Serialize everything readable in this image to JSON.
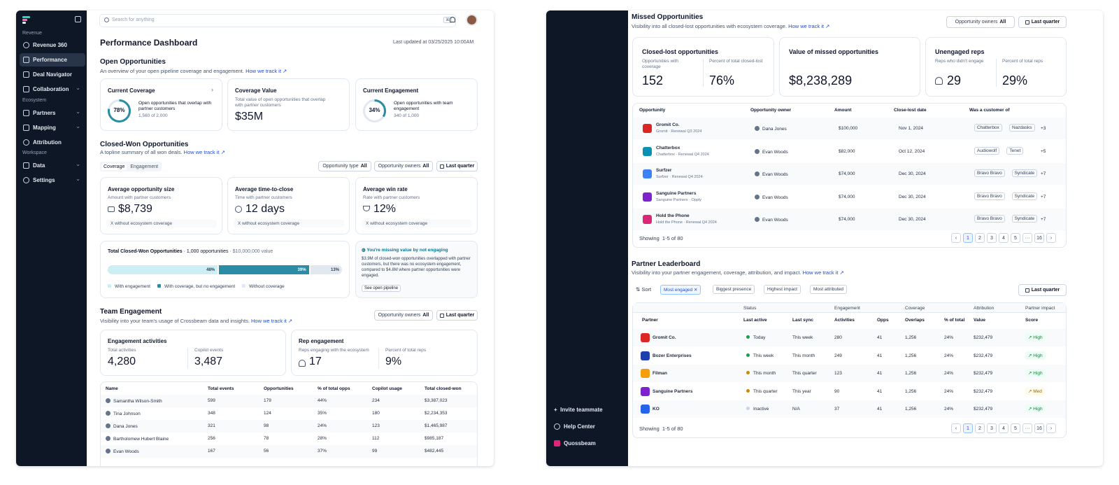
{
  "sidebar": {
    "sections": {
      "revenue": "Revenue",
      "ecosystem": "Ecosystem",
      "workspace": "Workspace"
    },
    "items": [
      {
        "label": "Revenue 360",
        "icon": "globe-icon"
      },
      {
        "label": "Performance",
        "icon": "chart-line-icon",
        "active": true
      },
      {
        "label": "Deal Navigator",
        "icon": "compass-icon"
      },
      {
        "label": "Collaboration",
        "icon": "chat-icon"
      },
      {
        "label": "Partners",
        "icon": "network-icon"
      },
      {
        "label": "Mapping",
        "icon": "arrows-icon"
      },
      {
        "label": "Attribution",
        "icon": "target-icon"
      },
      {
        "label": "Data",
        "icon": "database-icon"
      },
      {
        "label": "Settings",
        "icon": "gear-icon"
      }
    ],
    "bottom": [
      {
        "label": "Invite teammate"
      },
      {
        "label": "Help Center"
      },
      {
        "label": "Quossbeam"
      }
    ]
  },
  "search": {
    "placeholder": "Search for anything",
    "shortcut": "⌘"
  },
  "page": {
    "title": "Performance Dashboard",
    "updated": "Last updated at 03/25/2025 10:00AM"
  },
  "open_opps": {
    "title": "Open Opportunities",
    "subtitle": "An overview of your open pipeline coverage and engagement.",
    "link": "How we track it ↗",
    "coverage": {
      "title": "Current Coverage",
      "pct": "78%",
      "pct_value": 0.78,
      "desc": "Open opportunities that overlap with partner customers",
      "count": "1,560 of 2,000"
    },
    "value": {
      "title": "Coverage Value",
      "desc": "Total value of open opportunities that overlap with partner customers",
      "value": "$35M"
    },
    "engagement": {
      "title": "Current Engagement",
      "pct": "34%",
      "pct_value": 0.34,
      "desc": "Open opportunities with team engagement",
      "count": "340 of 1,000"
    }
  },
  "closed_won": {
    "title": "Closed-Won Opportunities",
    "subtitle": "A topline summary of all won deals.",
    "link": "How we track it ↗",
    "tabs": [
      "Coverage",
      "Engagement"
    ],
    "filters": {
      "type_label": "Opportunity type",
      "type_value": "All",
      "owners_label": "Opportunity owners",
      "owners_value": "All",
      "period": "Last quarter"
    },
    "metrics": [
      {
        "title": "Average opportunity size",
        "sub": "Amount with partner customers",
        "value": "$8,739",
        "foot": "X without ecosystem coverage",
        "icon": "briefcase-icon"
      },
      {
        "title": "Average time-to-close",
        "sub": "Time with partner customers",
        "value": "12 days",
        "foot": "X without ecosystem coverage",
        "icon": "clock-icon"
      },
      {
        "title": "Average win rate",
        "sub": "Rate with partner customers",
        "value": "12%",
        "foot": "X without ecosystem coverage",
        "icon": "trophy-icon"
      }
    ],
    "total": {
      "title": "Total Closed-Won Opportunities",
      "count": "1,000 opportunities",
      "value": "$10,000,000 value",
      "segments": [
        {
          "label": "48%",
          "value": 48,
          "color": "#cdeef3"
        },
        {
          "label": "39%",
          "value": 39,
          "color": "#2b8ca6"
        },
        {
          "label": "13%",
          "value": 13,
          "color": "#e2e8f0"
        }
      ],
      "legend": [
        "With engagement",
        "With coverage, but no engagement",
        "Without coverage"
      ]
    },
    "insight": {
      "title": "You're missing value by not engaging",
      "text": "$3.9M of closed-won opportunities overlapped with partner customers, but there was no ecosystem engagement, compared to $4.8M where partner opportunities were engaged.",
      "button": "See open pipeline"
    }
  },
  "team": {
    "title": "Team Engagement",
    "subtitle": "Visibility into your team's usage of Crossbeam data and insights.",
    "link": "How we track it ↗",
    "filters": {
      "owners_label": "Opportunity owners",
      "owners_value": "All",
      "period": "Last quarter"
    },
    "activities": {
      "title": "Engagement activities",
      "a_label": "Total activities",
      "a_value": "4,280",
      "b_label": "Copilot events",
      "b_value": "3,487"
    },
    "reps": {
      "title": "Rep engagement",
      "a_label": "Reps engaging with the ecosystem",
      "a_value": "17",
      "b_label": "Percent of total reps",
      "b_value": "9%"
    },
    "columns": [
      "Name",
      "Total events",
      "Opportunities",
      "% of total opps",
      "Copilot usage",
      "Total closed-won"
    ],
    "rows": [
      [
        "Samantha Wilson-Smith",
        "599",
        "179",
        "44%",
        "234",
        "$3,387,023"
      ],
      [
        "Tina Johnson",
        "348",
        "124",
        "35%",
        "180",
        "$2,234,353"
      ],
      [
        "Dana Jones",
        "321",
        "98",
        "24%",
        "123",
        "$1,465,987"
      ],
      [
        "Bartholomew Hubert Blaine",
        "256",
        "78",
        "28%",
        "112",
        "$985,187"
      ],
      [
        "Evan Woods",
        "167",
        "56",
        "37%",
        "99",
        "$482,445"
      ]
    ]
  },
  "missed": {
    "title": "Missed Opportunities",
    "subtitle": "Visibility into all closed-lost opportunities with ecosystem coverage.",
    "link": "How we track it ↗",
    "filters": {
      "owners_label": "Opportunity owners",
      "owners_value": "All",
      "period": "Last quarter"
    },
    "cards": [
      {
        "title": "Closed-lost opportunities",
        "a_label": "Opportunities with coverage",
        "a_value": "152",
        "b_label": "Percent of total closed-lost",
        "b_value": "76%"
      },
      {
        "title": "Value of missed opportunities",
        "a_value": "$8,238,289"
      },
      {
        "title": "Unengaged reps",
        "a_label": "Reps who didn't engage",
        "a_value": "29",
        "b_label": "Percent of total reps",
        "b_value": "29%"
      }
    ],
    "columns": [
      "Opportunity",
      "Opportunity owner",
      "Amount",
      "Close-lost date",
      "Was a customer of"
    ],
    "rows": [
      {
        "name": "Gromit Co.",
        "sub": "Gromit · Renewal Q3 2024",
        "owner": "Dana Jones",
        "amount": "$100,000",
        "date": "Nov 1, 2024",
        "tags": [
          "Chatterbox",
          "Nazdasks"
        ],
        "more": "+3",
        "color": "#dc2626"
      },
      {
        "name": "Chatterbox",
        "sub": "Chatterbox · Renewal Q4 2024",
        "owner": "Evan Woods",
        "amount": "$82,000",
        "date": "Oct 12, 2024",
        "tags": [
          "Audiowolf",
          "Tenet"
        ],
        "more": "+5",
        "color": "#0891b2"
      },
      {
        "name": "Surfzer",
        "sub": "Surfzer · Renewal Q4 2024",
        "owner": "Evan Woods",
        "amount": "$74,000",
        "date": "Dec 30, 2024",
        "tags": [
          "Bravo Bravo",
          "Syndicate"
        ],
        "more": "+7",
        "color": "#3b82f6"
      },
      {
        "name": "Sanguine Partners",
        "sub": "Sanguine Partners · Opply",
        "owner": "Evan Woods",
        "amount": "$74,000",
        "date": "Dec 30, 2024",
        "tags": [
          "Bravo Bravo",
          "Syndicate"
        ],
        "more": "+7",
        "color": "#7e22ce"
      },
      {
        "name": "Hold the Phone",
        "sub": "Hold the Phone · Renewal Q4 2024",
        "owner": "Evan Woods",
        "amount": "$74,000",
        "date": "Dec 30, 2024",
        "tags": [
          "Bravo Bravo",
          "Syndicate"
        ],
        "more": "+7",
        "color": "#db2777"
      }
    ],
    "showing": "Showing  1-5 of 80",
    "pages": [
      "1",
      "2",
      "3",
      "4",
      "5",
      "···",
      "16"
    ]
  },
  "leaderboard": {
    "title": "Partner Leaderboard",
    "subtitle": "Visibility into your partner engagement, coverage, attribution, and impact.",
    "link": "How we track it ↗",
    "sort": "Sort",
    "chips": [
      "Most engaged",
      "Biggest presence",
      "Highest impact",
      "Most attributed"
    ],
    "period": "Last quarter",
    "groups": [
      "Status",
      "Engagement",
      "Coverage",
      "Attribution",
      "Partner impact"
    ],
    "columns": [
      "Partner",
      "Last active",
      "Last sync",
      "Activities",
      "Opps",
      "Overlaps",
      "% of total",
      "Value",
      "Score"
    ],
    "rows": [
      {
        "name": "Gromit Co.",
        "active": "Today",
        "sync": "This week",
        "act": "280",
        "opps": "41",
        "ov": "1,256",
        "pct": "24%",
        "val": "$232,479",
        "score": "High",
        "dot": "#16a34a",
        "color": "#dc2626"
      },
      {
        "name": "Bozer Enterprises",
        "active": "This week",
        "sync": "This month",
        "act": "249",
        "opps": "41",
        "ov": "1,256",
        "pct": "24%",
        "val": "$232,479",
        "score": "High",
        "dot": "#16a34a",
        "color": "#1e40af"
      },
      {
        "name": "Filman",
        "active": "This month",
        "sync": "This quarter",
        "act": "123",
        "opps": "41",
        "ov": "1,256",
        "pct": "24%",
        "val": "$232,479",
        "score": "High",
        "dot": "#ca8a04",
        "color": "#f59e0b"
      },
      {
        "name": "Sanguine Partners",
        "active": "This quarter",
        "sync": "This year",
        "act": "90",
        "opps": "41",
        "ov": "1,256",
        "pct": "24%",
        "val": "$232,479",
        "score": "Med",
        "dot": "#ca8a04",
        "color": "#7e22ce"
      },
      {
        "name": "KO",
        "active": "Inactive",
        "sync": "N/A",
        "act": "37",
        "opps": "41",
        "ov": "1,256",
        "pct": "24%",
        "val": "$232,479",
        "score": "High",
        "dot": "#cbd5e1",
        "color": "#2563eb"
      }
    ],
    "showing": "Showing  1-5 of 80",
    "pages": [
      "1",
      "2",
      "3",
      "4",
      "5",
      "···",
      "16"
    ]
  }
}
